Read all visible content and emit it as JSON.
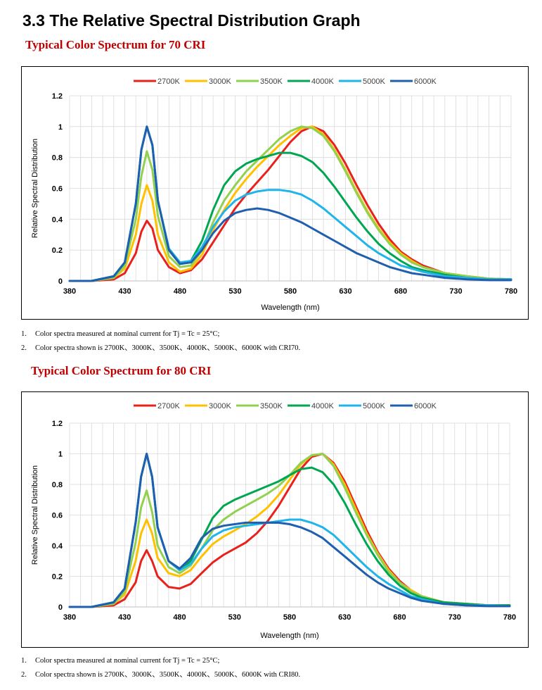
{
  "page": {
    "section_title": "3.3 The Relative Spectral Distribution Graph",
    "subtitle_70": "Typical Color Spectrum for 70 CRI",
    "subtitle_80": "Typical Color Spectrum for 80 CRI",
    "notes_70": [
      {
        "num": "1.",
        "text": "Color spectra measured at nominal current for Tj = Tc = 25°C;"
      },
      {
        "num": "2.",
        "text": "Color spectra shown is 2700K、3000K、3500K、4000K、5000K、6000K with CRI70."
      }
    ],
    "notes_80": [
      {
        "num": "1.",
        "text": "Color spectra measured at nominal current for Tj = Tc = 25°C;"
      },
      {
        "num": "2.",
        "text": "Color spectra shown is 2700K、3000K、3500K、4000K、5000K、6000K with CRI80."
      }
    ]
  },
  "chart_data": [
    {
      "type": "line",
      "title": "",
      "xlabel": "Wavelength (nm)",
      "ylabel": "Relative Spectral Distribution",
      "xlim": [
        380,
        780
      ],
      "ylim": [
        0,
        1.2
      ],
      "xticks": [
        380,
        430,
        480,
        530,
        580,
        630,
        680,
        730,
        780
      ],
      "yticks": [
        0,
        0.2,
        0.4,
        0.6,
        0.8,
        1,
        1.2
      ],
      "ytick_labels": [
        "0",
        "0.2",
        "0.4",
        "0.6",
        "0.8",
        "1",
        "1.2"
      ],
      "grid": true,
      "legend_position": "top",
      "x": [
        380,
        400,
        420,
        430,
        440,
        445,
        450,
        455,
        460,
        470,
        480,
        490,
        500,
        510,
        520,
        530,
        540,
        550,
        560,
        570,
        580,
        590,
        600,
        610,
        620,
        630,
        640,
        650,
        660,
        670,
        680,
        690,
        700,
        720,
        740,
        760,
        780
      ],
      "series": [
        {
          "name": "2700K",
          "color": "#e8211c",
          "values": [
            0,
            0,
            0.01,
            0.05,
            0.18,
            0.32,
            0.39,
            0.34,
            0.2,
            0.09,
            0.05,
            0.07,
            0.14,
            0.25,
            0.36,
            0.47,
            0.56,
            0.64,
            0.72,
            0.81,
            0.9,
            0.97,
            1.0,
            0.97,
            0.88,
            0.76,
            0.62,
            0.49,
            0.37,
            0.27,
            0.19,
            0.14,
            0.1,
            0.05,
            0.03,
            0.015,
            0.01
          ]
        },
        {
          "name": "3000K",
          "color": "#ffc000",
          "values": [
            0,
            0,
            0.02,
            0.08,
            0.3,
            0.5,
            0.62,
            0.52,
            0.3,
            0.12,
            0.06,
            0.08,
            0.17,
            0.33,
            0.46,
            0.57,
            0.66,
            0.74,
            0.81,
            0.88,
            0.94,
            0.99,
            1.0,
            0.95,
            0.85,
            0.72,
            0.58,
            0.45,
            0.34,
            0.25,
            0.18,
            0.13,
            0.09,
            0.05,
            0.03,
            0.015,
            0.01
          ]
        },
        {
          "name": "3500K",
          "color": "#92d050",
          "values": [
            0,
            0,
            0.02,
            0.1,
            0.4,
            0.68,
            0.84,
            0.72,
            0.42,
            0.16,
            0.09,
            0.1,
            0.2,
            0.38,
            0.52,
            0.62,
            0.71,
            0.78,
            0.85,
            0.92,
            0.97,
            1.0,
            0.99,
            0.94,
            0.84,
            0.71,
            0.57,
            0.44,
            0.33,
            0.24,
            0.17,
            0.12,
            0.09,
            0.05,
            0.03,
            0.015,
            0.01
          ]
        },
        {
          "name": "4000K",
          "color": "#00a650",
          "values": [
            0,
            0,
            0.03,
            0.12,
            0.5,
            0.85,
            1.0,
            0.88,
            0.52,
            0.2,
            0.11,
            0.13,
            0.26,
            0.46,
            0.62,
            0.71,
            0.76,
            0.79,
            0.81,
            0.83,
            0.83,
            0.81,
            0.77,
            0.7,
            0.61,
            0.51,
            0.41,
            0.32,
            0.24,
            0.18,
            0.13,
            0.09,
            0.07,
            0.04,
            0.02,
            0.01,
            0.01
          ]
        },
        {
          "name": "5000K",
          "color": "#1fb4ea",
          "values": [
            0,
            0,
            0.03,
            0.12,
            0.5,
            0.85,
            1.0,
            0.88,
            0.52,
            0.21,
            0.12,
            0.13,
            0.22,
            0.35,
            0.45,
            0.52,
            0.56,
            0.58,
            0.59,
            0.59,
            0.58,
            0.56,
            0.52,
            0.47,
            0.41,
            0.35,
            0.29,
            0.23,
            0.18,
            0.14,
            0.1,
            0.08,
            0.06,
            0.03,
            0.02,
            0.01,
            0.01
          ]
        },
        {
          "name": "6000K",
          "color": "#1f5fae",
          "values": [
            0,
            0,
            0.03,
            0.12,
            0.5,
            0.85,
            1.0,
            0.88,
            0.52,
            0.2,
            0.11,
            0.12,
            0.2,
            0.31,
            0.39,
            0.44,
            0.46,
            0.47,
            0.46,
            0.44,
            0.41,
            0.38,
            0.34,
            0.3,
            0.26,
            0.22,
            0.18,
            0.15,
            0.12,
            0.09,
            0.07,
            0.05,
            0.04,
            0.02,
            0.01,
            0.005,
            0.005
          ]
        }
      ]
    },
    {
      "type": "line",
      "title": "",
      "xlabel": "Wavelength (nm)",
      "ylabel": "Relative Spectral Distribution",
      "xlim": [
        380,
        780
      ],
      "ylim": [
        0,
        1.2
      ],
      "xticks": [
        380,
        430,
        480,
        530,
        580,
        630,
        680,
        730,
        780
      ],
      "yticks": [
        0,
        0.2,
        0.4,
        0.6,
        0.8,
        1,
        1.2
      ],
      "ytick_labels": [
        "0",
        "0.2",
        "0.4",
        "0.6",
        "0.8",
        "1",
        "1.2"
      ],
      "grid": true,
      "legend_position": "top",
      "x": [
        380,
        400,
        420,
        430,
        440,
        445,
        450,
        455,
        460,
        470,
        480,
        490,
        500,
        510,
        520,
        530,
        540,
        550,
        560,
        570,
        580,
        590,
        600,
        610,
        620,
        630,
        640,
        650,
        660,
        670,
        680,
        690,
        700,
        720,
        740,
        760,
        780
      ],
      "series": [
        {
          "name": "2700K",
          "color": "#e8211c",
          "values": [
            0,
            0,
            0.01,
            0.05,
            0.16,
            0.3,
            0.37,
            0.3,
            0.2,
            0.13,
            0.12,
            0.15,
            0.22,
            0.29,
            0.34,
            0.38,
            0.42,
            0.48,
            0.56,
            0.66,
            0.78,
            0.9,
            0.98,
            1.0,
            0.94,
            0.82,
            0.66,
            0.5,
            0.36,
            0.25,
            0.17,
            0.11,
            0.07,
            0.03,
            0.02,
            0.01,
            0.01
          ]
        },
        {
          "name": "3000K",
          "color": "#ffc000",
          "values": [
            0,
            0,
            0.02,
            0.08,
            0.3,
            0.48,
            0.57,
            0.48,
            0.32,
            0.22,
            0.2,
            0.24,
            0.33,
            0.41,
            0.46,
            0.5,
            0.54,
            0.59,
            0.65,
            0.73,
            0.83,
            0.93,
            0.99,
            1.0,
            0.93,
            0.8,
            0.64,
            0.48,
            0.35,
            0.24,
            0.16,
            0.11,
            0.07,
            0.03,
            0.02,
            0.01,
            0.01
          ]
        },
        {
          "name": "3500K",
          "color": "#92d050",
          "values": [
            0,
            0,
            0.02,
            0.1,
            0.42,
            0.65,
            0.76,
            0.62,
            0.4,
            0.26,
            0.22,
            0.27,
            0.38,
            0.5,
            0.57,
            0.62,
            0.66,
            0.7,
            0.74,
            0.79,
            0.86,
            0.94,
            0.99,
            1.0,
            0.92,
            0.78,
            0.62,
            0.47,
            0.34,
            0.23,
            0.16,
            0.1,
            0.07,
            0.03,
            0.02,
            0.01,
            0.01
          ]
        },
        {
          "name": "4000K",
          "color": "#00a650",
          "values": [
            0,
            0,
            0.03,
            0.12,
            0.55,
            0.85,
            1.0,
            0.85,
            0.52,
            0.3,
            0.24,
            0.3,
            0.44,
            0.58,
            0.66,
            0.7,
            0.73,
            0.76,
            0.79,
            0.82,
            0.86,
            0.9,
            0.91,
            0.88,
            0.8,
            0.68,
            0.54,
            0.41,
            0.3,
            0.21,
            0.14,
            0.09,
            0.06,
            0.03,
            0.02,
            0.01,
            0.01
          ]
        },
        {
          "name": "5000K",
          "color": "#1fb4ea",
          "values": [
            0,
            0,
            0.03,
            0.12,
            0.55,
            0.85,
            1.0,
            0.85,
            0.52,
            0.3,
            0.24,
            0.28,
            0.38,
            0.46,
            0.5,
            0.52,
            0.53,
            0.54,
            0.55,
            0.56,
            0.57,
            0.57,
            0.55,
            0.52,
            0.47,
            0.4,
            0.33,
            0.26,
            0.2,
            0.15,
            0.11,
            0.07,
            0.05,
            0.02,
            0.01,
            0.01,
            0.005
          ]
        },
        {
          "name": "6000K",
          "color": "#1f5fae",
          "values": [
            0,
            0,
            0.03,
            0.12,
            0.55,
            0.85,
            1.0,
            0.85,
            0.52,
            0.3,
            0.25,
            0.32,
            0.45,
            0.51,
            0.53,
            0.54,
            0.55,
            0.55,
            0.55,
            0.55,
            0.54,
            0.52,
            0.49,
            0.45,
            0.39,
            0.33,
            0.27,
            0.21,
            0.16,
            0.12,
            0.09,
            0.06,
            0.04,
            0.02,
            0.01,
            0.005,
            0.005
          ]
        }
      ]
    }
  ]
}
